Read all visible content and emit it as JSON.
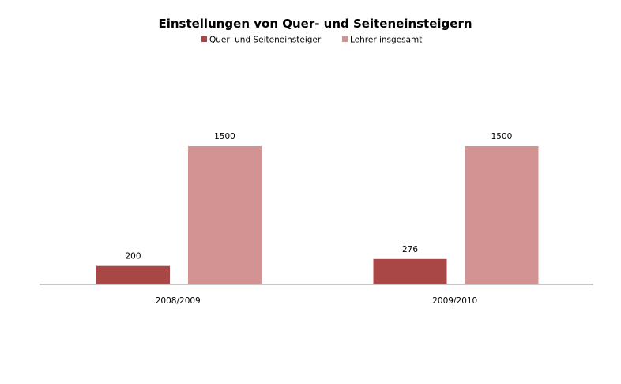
{
  "chart_data": {
    "type": "bar",
    "title": "Einstellungen von Quer- und Seiteneinsteigern",
    "xlabel": "",
    "ylabel": "",
    "categories": [
      "2008/2009",
      "2009/2010"
    ],
    "series": [
      {
        "name": "Quer- und Seiteneinsteiger",
        "values": [
          200,
          276
        ],
        "color": "#a94746"
      },
      {
        "name": "Lehrer insgesamt",
        "values": [
          1500,
          1500
        ],
        "color": "#d29392"
      }
    ],
    "ylim": [
      0,
      1500
    ],
    "grid": false,
    "legend": "top",
    "data_labels": true
  }
}
